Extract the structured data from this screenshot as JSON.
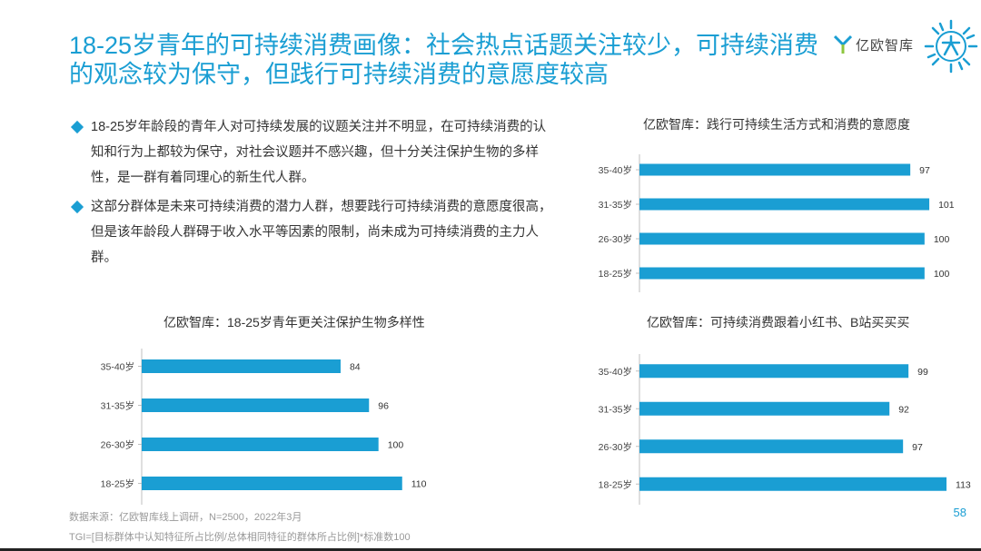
{
  "header": {
    "title": "18-25岁青年的可持续消费画像：社会热点话题关注较少，可持续消费的观念较为保守，但践行可持续消费的意愿度较高",
    "logo_text": "亿欧智库"
  },
  "bullets": [
    "18-25岁年龄段的青年人对可持续发展的议题关注并不明显，在可持续消费的认知和行为上都较为保守，对社会议题并不感兴趣，但十分关注保护生物的多样性，是一群有着同理心的新生代人群。",
    "这部分群体是未来可持续消费的潜力人群，想要践行可持续消费的意愿度很高，但是该年龄段人群碍于收入水平等因素的限制，尚未成为可持续消费的主力人群。"
  ],
  "colors": {
    "accent": "#1a9ed3",
    "bar": "#1a9ed3"
  },
  "chart_data": [
    {
      "id": "willingness",
      "type": "bar",
      "orientation": "horizontal",
      "title": "亿欧智库：践行可持续生活方式和消费的意愿度",
      "categories": [
        "35-40岁",
        "31-35岁",
        "26-30岁",
        "18-25岁"
      ],
      "values": [
        97,
        101,
        100,
        100
      ],
      "xlim": [
        40,
        105
      ]
    },
    {
      "id": "biodiversity",
      "type": "bar",
      "orientation": "horizontal",
      "title": "亿欧智库：18-25岁青年更关注保护生物多样性",
      "categories": [
        "35-40岁",
        "31-35岁",
        "26-30岁",
        "18-25岁"
      ],
      "values": [
        84,
        96,
        100,
        110
      ],
      "xlim": [
        0,
        145
      ]
    },
    {
      "id": "xiaohongshu",
      "type": "bar",
      "orientation": "horizontal",
      "title": "亿欧智库：可持续消费跟着小红书、B站买买买",
      "categories": [
        "35-40岁",
        "31-35岁",
        "26-30岁",
        "18-25岁"
      ],
      "values": [
        99,
        92,
        97,
        113
      ],
      "xlim": [
        0,
        117
      ]
    }
  ],
  "footer": {
    "source": "数据来源：亿欧智库线上调研，N=2500，2022年3月",
    "tgi_note": "TGI=[目标群体中认知特征所占比例/总体相同特征的群体所占比例]*标准数100",
    "page_number": "58"
  }
}
